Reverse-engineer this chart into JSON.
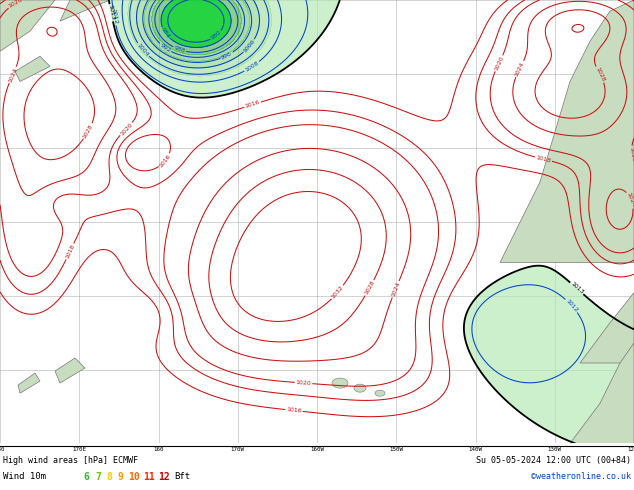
{
  "title_left": "High wind areas [hPa] ECMWF",
  "title_right": "Su 05-05-2024 12:00 UTC (00+84)",
  "legend_label": "Wind 10m",
  "legend_values": [
    "6",
    "7",
    "8",
    "9",
    "10",
    "11",
    "12"
  ],
  "legend_colors": [
    "#33bb33",
    "#66cc00",
    "#ffcc00",
    "#ff9900",
    "#ff6600",
    "#ff2200",
    "#cc0000"
  ],
  "legend_suffix": "Bft",
  "credit": "©weatheronline.co.uk",
  "fig_width": 6.34,
  "fig_height": 4.9,
  "dpi": 100,
  "ocean_bg": "#c0d0c0",
  "land_color": "#c8dcc0",
  "grid_color": "#909090",
  "blue_levels": [
    980,
    984,
    988,
    992,
    996,
    1000,
    1004,
    1008,
    1012
  ],
  "red_levels": [
    1016,
    1018,
    1020,
    1024,
    1028,
    1032
  ],
  "black_levels": [
    1013
  ]
}
